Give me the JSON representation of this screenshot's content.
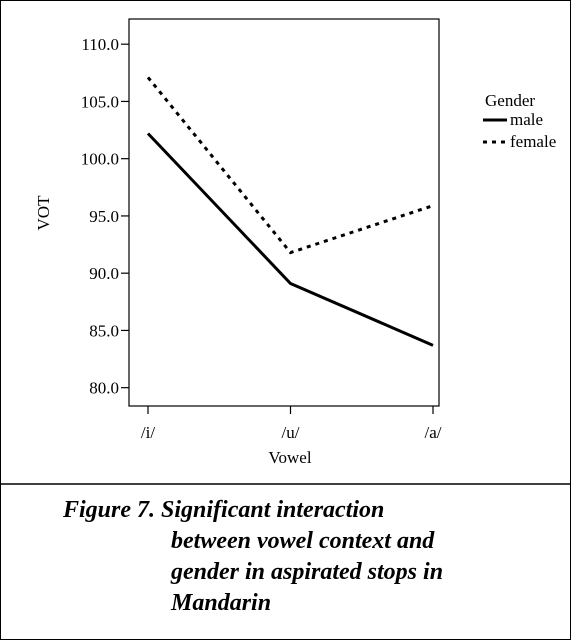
{
  "chart_data": {
    "type": "line",
    "categories": [
      "/i/",
      "/u/",
      "/a/"
    ],
    "series": [
      {
        "name": "male",
        "color": "#000000",
        "dash": "solid",
        "values": [
          102.2,
          89.1,
          83.7
        ]
      },
      {
        "name": "female",
        "color": "#000000",
        "dash": "dotted",
        "values": [
          107.1,
          91.8,
          95.9
        ]
      }
    ],
    "ylim": [
      78.4,
      112.2
    ],
    "yticks": [
      {
        "value": 80,
        "label": "80.0"
      },
      {
        "value": 85,
        "label": "85.0"
      },
      {
        "value": 90,
        "label": "90.0"
      },
      {
        "value": 95,
        "label": "95.0"
      },
      {
        "value": 100,
        "label": "100.0"
      },
      {
        "value": 105,
        "label": "105.0"
      },
      {
        "value": 110,
        "label": "110.0"
      }
    ],
    "y_label": "VOT",
    "x_label": "Vowel",
    "legend_title": "Gender",
    "legend": "upper right",
    "grid": false
  },
  "caption": [
    "Figure 7. Significant interaction",
    "between vowel context and",
    "gender in aspirated stops in",
    "Mandarin"
  ]
}
